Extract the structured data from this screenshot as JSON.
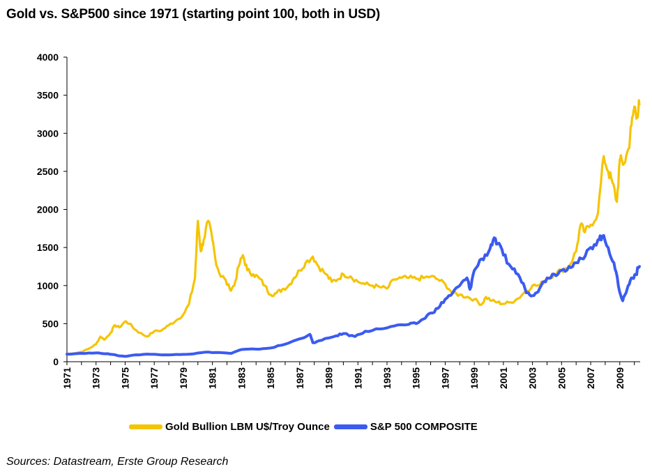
{
  "title": "Gold vs. S&P500 since 1971 (starting point 100, both in USD)",
  "source": "Sources: Datastream, Erste Group Research",
  "colors": {
    "gold": "#F5C400",
    "sp500": "#3B5BF0",
    "axis": "#000000"
  },
  "chart_data": {
    "type": "line",
    "title": "Gold vs. S&P500 since 1971 (starting point 100, both in USD)",
    "xlabel": "",
    "ylabel": "",
    "xlim": [
      1971,
      2010.4
    ],
    "ylim": [
      0,
      4000
    ],
    "yticks": [
      0,
      500,
      1000,
      1500,
      2000,
      2500,
      3000,
      3500,
      4000
    ],
    "xticks": [
      1971,
      1973,
      1975,
      1977,
      1979,
      1981,
      1983,
      1985,
      1987,
      1989,
      1991,
      1993,
      1995,
      1997,
      1999,
      2001,
      2003,
      2005,
      2007,
      2009
    ],
    "grid": false,
    "legend": "bottom",
    "series": [
      {
        "name": "Gold Bullion LBM U$/Troy Ounce",
        "color": "#F5C400",
        "points": [
          [
            1971.0,
            100
          ],
          [
            1971.5,
            110
          ],
          [
            1972.0,
            130
          ],
          [
            1972.5,
            170
          ],
          [
            1973.0,
            230
          ],
          [
            1973.3,
            330
          ],
          [
            1973.6,
            290
          ],
          [
            1974.0,
            380
          ],
          [
            1974.3,
            480
          ],
          [
            1974.6,
            450
          ],
          [
            1975.0,
            530
          ],
          [
            1975.3,
            500
          ],
          [
            1975.7,
            420
          ],
          [
            1976.0,
            380
          ],
          [
            1976.5,
            330
          ],
          [
            1977.0,
            400
          ],
          [
            1977.5,
            410
          ],
          [
            1978.0,
            480
          ],
          [
            1978.5,
            540
          ],
          [
            1979.0,
            620
          ],
          [
            1979.4,
            760
          ],
          [
            1979.8,
            1100
          ],
          [
            1980.0,
            1850
          ],
          [
            1980.2,
            1450
          ],
          [
            1980.4,
            1600
          ],
          [
            1980.7,
            1850
          ],
          [
            1981.0,
            1600
          ],
          [
            1981.2,
            1350
          ],
          [
            1981.5,
            1150
          ],
          [
            1981.8,
            1100
          ],
          [
            1982.2,
            950
          ],
          [
            1982.5,
            1000
          ],
          [
            1982.8,
            1250
          ],
          [
            1983.1,
            1400
          ],
          [
            1983.4,
            1200
          ],
          [
            1983.8,
            1150
          ],
          [
            1984.2,
            1100
          ],
          [
            1984.6,
            1000
          ],
          [
            1985.0,
            880
          ],
          [
            1985.4,
            900
          ],
          [
            1985.8,
            950
          ],
          [
            1986.2,
            990
          ],
          [
            1986.6,
            1100
          ],
          [
            1987.0,
            1200
          ],
          [
            1987.4,
            1300
          ],
          [
            1987.9,
            1380
          ],
          [
            1988.3,
            1250
          ],
          [
            1988.8,
            1150
          ],
          [
            1989.2,
            1050
          ],
          [
            1989.6,
            1080
          ],
          [
            1990.0,
            1150
          ],
          [
            1990.5,
            1120
          ],
          [
            1991.0,
            1050
          ],
          [
            1991.5,
            1020
          ],
          [
            1992.0,
            1000
          ],
          [
            1992.5,
            980
          ],
          [
            1993.0,
            960
          ],
          [
            1993.5,
            1080
          ],
          [
            1994.0,
            1100
          ],
          [
            1994.5,
            1100
          ],
          [
            1995.0,
            1090
          ],
          [
            1995.5,
            1100
          ],
          [
            1996.0,
            1120
          ],
          [
            1996.5,
            1080
          ],
          [
            1997.0,
            1020
          ],
          [
            1997.5,
            900
          ],
          [
            1998.0,
            880
          ],
          [
            1998.5,
            850
          ],
          [
            1999.0,
            820
          ],
          [
            1999.5,
            750
          ],
          [
            1999.8,
            850
          ],
          [
            2000.2,
            800
          ],
          [
            2000.6,
            780
          ],
          [
            2001.0,
            760
          ],
          [
            2001.5,
            780
          ],
          [
            2002.0,
            830
          ],
          [
            2002.5,
            920
          ],
          [
            2003.0,
            1000
          ],
          [
            2003.5,
            1000
          ],
          [
            2004.0,
            1100
          ],
          [
            2004.5,
            1150
          ],
          [
            2005.0,
            1200
          ],
          [
            2005.5,
            1250
          ],
          [
            2006.0,
            1450
          ],
          [
            2006.3,
            1800
          ],
          [
            2006.6,
            1700
          ],
          [
            2007.0,
            1800
          ],
          [
            2007.5,
            1950
          ],
          [
            2007.9,
            2700
          ],
          [
            2008.2,
            2500
          ],
          [
            2008.5,
            2350
          ],
          [
            2008.8,
            2100
          ],
          [
            2009.0,
            2650
          ],
          [
            2009.3,
            2600
          ],
          [
            2009.6,
            2800
          ],
          [
            2009.8,
            3100
          ],
          [
            2010.0,
            3350
          ],
          [
            2010.2,
            3250
          ],
          [
            2010.35,
            3380
          ]
        ]
      },
      {
        "name": "S&P 500 COMPOSITE",
        "color": "#3B5BF0",
        "points": [
          [
            1971.0,
            100
          ],
          [
            1972.0,
            110
          ],
          [
            1973.0,
            115
          ],
          [
            1973.8,
            105
          ],
          [
            1974.5,
            80
          ],
          [
            1975.0,
            70
          ],
          [
            1975.5,
            85
          ],
          [
            1976.5,
            100
          ],
          [
            1977.5,
            90
          ],
          [
            1978.5,
            95
          ],
          [
            1979.5,
            100
          ],
          [
            1980.5,
            125
          ],
          [
            1981.5,
            120
          ],
          [
            1982.3,
            110
          ],
          [
            1983.0,
            160
          ],
          [
            1984.0,
            165
          ],
          [
            1985.0,
            180
          ],
          [
            1986.0,
            230
          ],
          [
            1987.0,
            300
          ],
          [
            1987.7,
            360
          ],
          [
            1987.9,
            250
          ],
          [
            1988.5,
            280
          ],
          [
            1989.5,
            340
          ],
          [
            1990.0,
            370
          ],
          [
            1990.8,
            330
          ],
          [
            1991.5,
            400
          ],
          [
            1992.5,
            430
          ],
          [
            1993.5,
            470
          ],
          [
            1994.5,
            490
          ],
          [
            1995.0,
            500
          ],
          [
            1995.5,
            560
          ],
          [
            1996.0,
            640
          ],
          [
            1996.5,
            700
          ],
          [
            1997.0,
            820
          ],
          [
            1997.5,
            900
          ],
          [
            1998.0,
            1000
          ],
          [
            1998.5,
            1100
          ],
          [
            1998.7,
            950
          ],
          [
            1999.0,
            1200
          ],
          [
            1999.5,
            1350
          ],
          [
            2000.0,
            1450
          ],
          [
            2000.3,
            1600
          ],
          [
            2000.6,
            1550
          ],
          [
            2001.0,
            1400
          ],
          [
            2001.5,
            1250
          ],
          [
            2002.0,
            1150
          ],
          [
            2002.5,
            950
          ],
          [
            2002.8,
            880
          ],
          [
            2003.2,
            900
          ],
          [
            2003.6,
            1000
          ],
          [
            2004.0,
            1100
          ],
          [
            2004.5,
            1150
          ],
          [
            2005.0,
            1200
          ],
          [
            2005.5,
            1250
          ],
          [
            2006.0,
            1300
          ],
          [
            2006.5,
            1350
          ],
          [
            2007.0,
            1500
          ],
          [
            2007.5,
            1600
          ],
          [
            2007.8,
            1650
          ],
          [
            2008.2,
            1500
          ],
          [
            2008.6,
            1300
          ],
          [
            2008.9,
            1000
          ],
          [
            2009.2,
            800
          ],
          [
            2009.5,
            950
          ],
          [
            2009.8,
            1100
          ],
          [
            2010.1,
            1150
          ],
          [
            2010.35,
            1250
          ]
        ]
      }
    ]
  }
}
